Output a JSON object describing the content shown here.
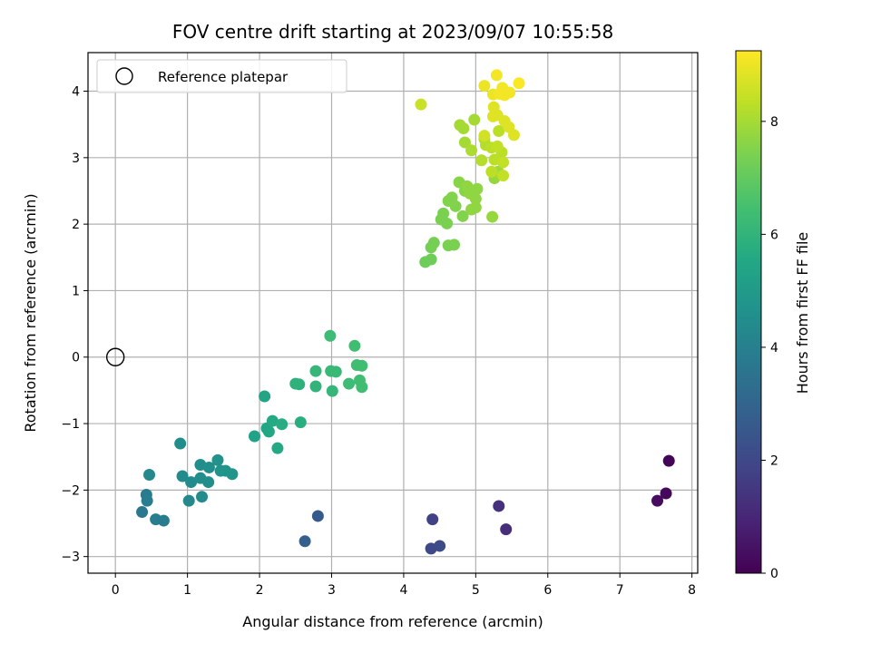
{
  "chart_data": {
    "type": "scatter",
    "title": "FOV centre drift starting at 2023/09/07 10:55:58",
    "xlabel": "Angular distance from reference (arcmin)",
    "ylabel": "Rotation from reference (arcmin)",
    "xlim": [
      -0.38,
      8.08
    ],
    "ylim": [
      -3.25,
      4.58
    ],
    "xticks": [
      0,
      1,
      2,
      3,
      4,
      5,
      6,
      7,
      8
    ],
    "yticks": [
      -3,
      -2,
      -1,
      0,
      1,
      2,
      3,
      4
    ],
    "grid": true,
    "legend": {
      "position": "top-left",
      "label": "Reference platepar"
    },
    "reference_point": {
      "x": 0,
      "y": 0
    },
    "colorbar": {
      "label": "Hours from first FF file",
      "range": [
        0,
        9.25
      ],
      "ticks": [
        0,
        2,
        4,
        6,
        8
      ],
      "colormap": "viridis"
    },
    "points": [
      [
        7.68,
        -1.56,
        0.1
      ],
      [
        7.64,
        -2.05,
        0.2
      ],
      [
        7.52,
        -2.16,
        0.3
      ],
      [
        5.42,
        -2.59,
        1.2
      ],
      [
        5.32,
        -2.24,
        1.3
      ],
      [
        4.4,
        -2.44,
        1.8
      ],
      [
        4.38,
        -2.88,
        2.0
      ],
      [
        4.5,
        -2.84,
        2.1
      ],
      [
        2.81,
        -2.39,
        2.6
      ],
      [
        2.63,
        -2.77,
        2.8
      ],
      [
        0.37,
        -2.33,
        3.7
      ],
      [
        0.43,
        -2.07,
        3.8
      ],
      [
        0.44,
        -2.16,
        3.9
      ],
      [
        0.56,
        -2.44,
        3.9
      ],
      [
        0.67,
        -2.46,
        3.8
      ],
      [
        0.47,
        -1.77,
        4.3
      ],
      [
        0.9,
        -1.3,
        4.5
      ],
      [
        0.93,
        -1.79,
        4.4
      ],
      [
        1.02,
        -2.16,
        4.3
      ],
      [
        1.05,
        -1.88,
        4.4
      ],
      [
        1.18,
        -1.62,
        4.5
      ],
      [
        1.18,
        -1.82,
        4.5
      ],
      [
        1.2,
        -2.1,
        4.4
      ],
      [
        1.3,
        -1.66,
        4.6
      ],
      [
        1.29,
        -1.88,
        4.5
      ],
      [
        1.42,
        -1.55,
        4.7
      ],
      [
        1.46,
        -1.71,
        4.7
      ],
      [
        1.53,
        -1.71,
        4.8
      ],
      [
        1.62,
        -1.76,
        4.8
      ],
      [
        1.93,
        -1.19,
        5.3
      ],
      [
        2.07,
        -0.59,
        5.4
      ],
      [
        2.1,
        -1.07,
        5.5
      ],
      [
        2.13,
        -1.12,
        5.5
      ],
      [
        2.18,
        -0.96,
        5.6
      ],
      [
        2.25,
        -1.37,
        5.6
      ],
      [
        2.31,
        -1.01,
        5.7
      ],
      [
        2.5,
        -0.4,
        5.9
      ],
      [
        2.55,
        -0.41,
        5.9
      ],
      [
        2.57,
        -0.98,
        5.8
      ],
      [
        2.78,
        -0.21,
        6.1
      ],
      [
        2.78,
        -0.44,
        6.0
      ],
      [
        2.98,
        0.32,
        6.3
      ],
      [
        2.99,
        -0.21,
        6.2
      ],
      [
        3.01,
        -0.51,
        6.1
      ],
      [
        3.06,
        -0.22,
        6.2
      ],
      [
        3.24,
        -0.4,
        6.3
      ],
      [
        3.32,
        0.17,
        6.4
      ],
      [
        3.35,
        -0.12,
        6.4
      ],
      [
        3.39,
        -0.35,
        6.4
      ],
      [
        3.42,
        -0.13,
        6.4
      ],
      [
        3.42,
        -0.45,
        6.4
      ],
      [
        4.3,
        1.43,
        7.2
      ],
      [
        4.38,
        1.47,
        7.2
      ],
      [
        4.38,
        1.65,
        7.3
      ],
      [
        4.42,
        1.72,
        7.3
      ],
      [
        4.52,
        2.07,
        7.4
      ],
      [
        4.55,
        2.16,
        7.4
      ],
      [
        4.6,
        2.01,
        7.4
      ],
      [
        4.62,
        2.35,
        7.5
      ],
      [
        4.62,
        1.68,
        7.4
      ],
      [
        4.67,
        2.4,
        7.5
      ],
      [
        4.7,
        1.69,
        7.4
      ],
      [
        4.72,
        2.27,
        7.5
      ],
      [
        4.77,
        2.63,
        7.6
      ],
      [
        4.82,
        2.12,
        7.5
      ],
      [
        4.85,
        2.5,
        7.6
      ],
      [
        4.88,
        2.57,
        7.7
      ],
      [
        4.92,
        2.46,
        7.7
      ],
      [
        4.94,
        2.22,
        7.7
      ],
      [
        5.0,
        2.38,
        7.7
      ],
      [
        5.02,
        2.53,
        7.7
      ],
      [
        5.0,
        2.25,
        7.7
      ],
      [
        5.23,
        2.11,
        7.8
      ],
      [
        5.26,
        2.69,
        7.8
      ],
      [
        5.31,
        2.79,
        7.9
      ],
      [
        4.78,
        3.49,
        8.0
      ],
      [
        4.83,
        3.44,
        8.0
      ],
      [
        4.85,
        3.23,
        8.0
      ],
      [
        4.94,
        3.11,
        8.1
      ],
      [
        4.98,
        3.57,
        8.0
      ],
      [
        5.08,
        2.96,
        8.2
      ],
      [
        5.12,
        3.28,
        8.2
      ],
      [
        5.14,
        3.19,
        8.2
      ],
      [
        5.22,
        3.15,
        8.3
      ],
      [
        5.26,
        2.97,
        8.3
      ],
      [
        5.32,
        3.4,
        8.3
      ],
      [
        5.36,
        3.08,
        8.3
      ],
      [
        5.38,
        2.93,
        8.4
      ],
      [
        5.38,
        2.73,
        8.4
      ],
      [
        5.22,
        2.79,
        8.3
      ],
      [
        5.3,
        3.17,
        8.4
      ],
      [
        4.24,
        3.8,
        8.5
      ],
      [
        5.12,
        3.33,
        8.6
      ],
      [
        5.24,
        3.62,
        8.8
      ],
      [
        5.25,
        3.76,
        8.8
      ],
      [
        5.3,
        3.64,
        8.8
      ],
      [
        5.4,
        3.55,
        8.8
      ],
      [
        5.46,
        3.46,
        8.8
      ],
      [
        5.53,
        3.34,
        8.8
      ],
      [
        5.12,
        4.08,
        9.0
      ],
      [
        5.24,
        3.95,
        9.0
      ],
      [
        5.29,
        4.24,
        9.1
      ],
      [
        5.33,
        3.96,
        9.1
      ],
      [
        5.37,
        4.05,
        9.1
      ],
      [
        5.4,
        3.94,
        9.1
      ],
      [
        5.47,
        3.98,
        9.1
      ],
      [
        5.6,
        4.12,
        9.2
      ]
    ]
  }
}
